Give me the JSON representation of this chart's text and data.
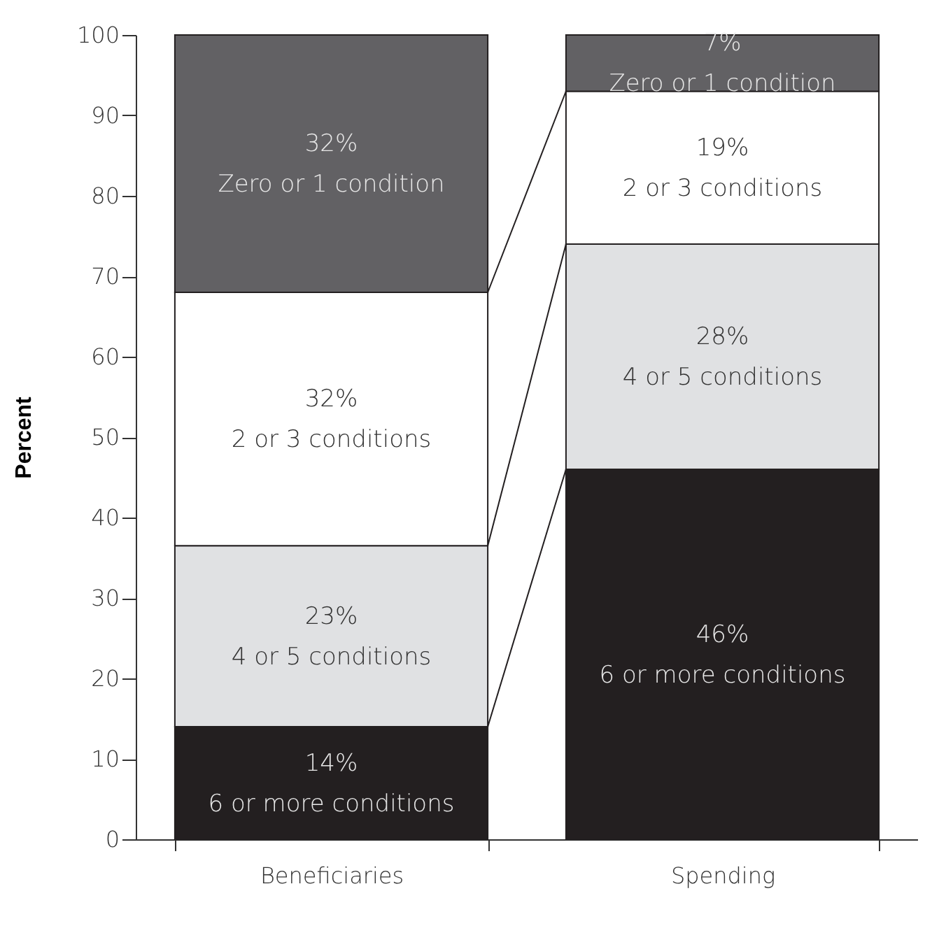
{
  "chart_data": {
    "type": "bar",
    "stacked": true,
    "ylabel": "Percent",
    "categories": [
      "Beneficiaries",
      "Spending"
    ],
    "ylim": [
      0,
      100
    ],
    "yticks": [
      0,
      10,
      20,
      30,
      40,
      50,
      60,
      70,
      80,
      90,
      100
    ],
    "series": [
      {
        "name": "6 or more conditions",
        "color": "#231f20",
        "values": [
          14,
          46
        ],
        "value_labels": [
          "14%",
          "46%"
        ]
      },
      {
        "name": "4 or 5 conditions",
        "color": "#e0e1e3",
        "values": [
          22.5,
          28
        ],
        "value_labels": [
          "23%",
          "28%"
        ]
      },
      {
        "name": "2 or 3 conditions",
        "color": "#ffffff",
        "values": [
          31.5,
          19
        ],
        "value_labels": [
          "32%",
          "19%"
        ]
      },
      {
        "name": "Zero or 1 condition",
        "color": "#626164",
        "values": [
          32,
          7
        ],
        "value_labels": [
          "32%",
          "7%"
        ]
      }
    ]
  }
}
